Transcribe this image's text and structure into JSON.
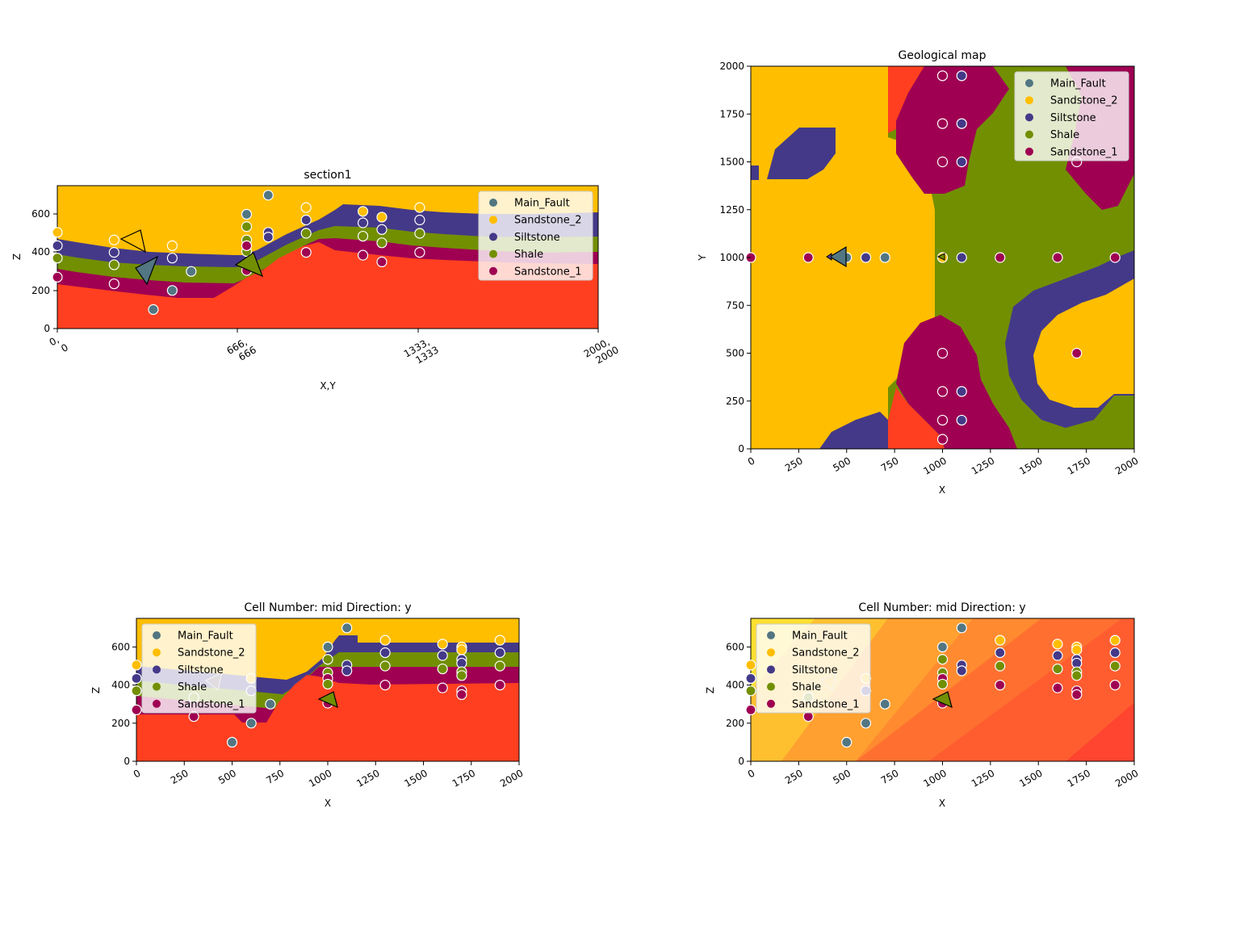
{
  "colors": {
    "Main_Fault": "#527682",
    "Sandstone_2": "#ffbe00",
    "Siltstone": "#443988",
    "Shale": "#728f02",
    "Sandstone_1": "#9f0052",
    "Basement": "#ff3f20"
  },
  "legend": [
    "Main_Fault",
    "Sandstone_2",
    "Siltstone",
    "Shale",
    "Sandstone_1"
  ],
  "chart_data": [
    {
      "id": "section1",
      "type": "scatter",
      "title": "section1",
      "xlabel": "X,Y",
      "ylabel": "Z",
      "xlim": [
        0,
        2000
      ],
      "ylim": [
        0,
        750
      ],
      "legend_position": "top-right",
      "xtick_labels": [
        [
          "0,",
          "0"
        ],
        [
          "666,",
          "666"
        ],
        [
          "1333,",
          "1333"
        ],
        [
          "2000,",
          "2000"
        ]
      ],
      "yticks": [
        0,
        200,
        400,
        600
      ],
      "points": [
        {
          "s": "Sandstone_2",
          "x": 0,
          "z": 505
        },
        {
          "s": "Siltstone",
          "x": 0,
          "z": 435
        },
        {
          "s": "Shale",
          "x": 0,
          "z": 370
        },
        {
          "s": "Sandstone_1",
          "x": 0,
          "z": 270
        },
        {
          "s": "Sandstone_2",
          "x": 210,
          "z": 465
        },
        {
          "s": "Siltstone",
          "x": 210,
          "z": 400
        },
        {
          "s": "Shale",
          "x": 210,
          "z": 335
        },
        {
          "s": "Sandstone_1",
          "x": 210,
          "z": 235
        },
        {
          "s": "Main_Fault",
          "x": 355,
          "z": 100
        },
        {
          "s": "Sandstone_2",
          "x": 425,
          "z": 435
        },
        {
          "s": "Siltstone",
          "x": 425,
          "z": 370
        },
        {
          "s": "Main_Fault",
          "x": 425,
          "z": 200
        },
        {
          "s": "Main_Fault",
          "x": 495,
          "z": 300
        },
        {
          "s": "Main_Fault",
          "x": 700,
          "z": 600
        },
        {
          "s": "Shale",
          "x": 700,
          "z": 535
        },
        {
          "s": "Shale",
          "x": 700,
          "z": 465
        },
        {
          "s": "Shale",
          "x": 700,
          "z": 405
        },
        {
          "s": "Sandstone_1",
          "x": 700,
          "z": 435
        },
        {
          "s": "Sandstone_1",
          "x": 700,
          "z": 305
        },
        {
          "s": "Main_Fault",
          "x": 780,
          "z": 700
        },
        {
          "s": "Siltstone",
          "x": 780,
          "z": 505
        },
        {
          "s": "Siltstone",
          "x": 780,
          "z": 480
        },
        {
          "s": "Sandstone_2",
          "x": 920,
          "z": 635
        },
        {
          "s": "Siltstone",
          "x": 920,
          "z": 570
        },
        {
          "s": "Shale",
          "x": 920,
          "z": 500
        },
        {
          "s": "Sandstone_1",
          "x": 920,
          "z": 400
        },
        {
          "s": "Sandstone_2",
          "x": 1130,
          "z": 615
        },
        {
          "s": "Siltstone",
          "x": 1130,
          "z": 555
        },
        {
          "s": "Shale",
          "x": 1130,
          "z": 485
        },
        {
          "s": "Sandstone_1",
          "x": 1130,
          "z": 385
        },
        {
          "s": "Sandstone_2",
          "x": 1200,
          "z": 585
        },
        {
          "s": "Siltstone",
          "x": 1200,
          "z": 520
        },
        {
          "s": "Shale",
          "x": 1200,
          "z": 450
        },
        {
          "s": "Sandstone_1",
          "x": 1200,
          "z": 350
        },
        {
          "s": "Sandstone_2",
          "x": 1340,
          "z": 635
        },
        {
          "s": "Siltstone",
          "x": 1340,
          "z": 570
        },
        {
          "s": "Shale",
          "x": 1340,
          "z": 500
        },
        {
          "s": "Sandstone_1",
          "x": 1340,
          "z": 400
        }
      ]
    },
    {
      "id": "geomap",
      "type": "scatter",
      "title": "Geological map",
      "xlabel": "X",
      "ylabel": "Y",
      "xlim": [
        0,
        2000
      ],
      "ylim": [
        0,
        2000
      ],
      "legend_position": "top-right",
      "xticks": [
        0,
        250,
        500,
        750,
        1000,
        1250,
        1500,
        1750,
        2000
      ],
      "yticks": [
        0,
        250,
        500,
        750,
        1000,
        1250,
        1500,
        1750,
        2000
      ],
      "points": [
        {
          "s": "Sandstone_1",
          "x": 1000,
          "y": 1950
        },
        {
          "s": "Siltstone",
          "x": 1100,
          "y": 1950
        },
        {
          "s": "Sandstone_1",
          "x": 1000,
          "y": 1700
        },
        {
          "s": "Siltstone",
          "x": 1100,
          "y": 1700
        },
        {
          "s": "Sandstone_1",
          "x": 1000,
          "y": 1500
        },
        {
          "s": "Siltstone",
          "x": 1100,
          "y": 1500
        },
        {
          "s": "Sandstone_1",
          "x": 1700,
          "y": 1500
        },
        {
          "s": "Sandstone_1",
          "x": 0,
          "y": 1000
        },
        {
          "s": "Sandstone_1",
          "x": 300,
          "y": 1000
        },
        {
          "s": "Main_Fault",
          "x": 500,
          "y": 1000
        },
        {
          "s": "Siltstone",
          "x": 600,
          "y": 1000
        },
        {
          "s": "Main_Fault",
          "x": 700,
          "y": 1000
        },
        {
          "s": "Sandstone_2",
          "x": 1000,
          "y": 1000
        },
        {
          "s": "Siltstone",
          "x": 1100,
          "y": 1000
        },
        {
          "s": "Sandstone_1",
          "x": 1300,
          "y": 1000
        },
        {
          "s": "Sandstone_1",
          "x": 1600,
          "y": 1000
        },
        {
          "s": "Sandstone_1",
          "x": 1900,
          "y": 1000
        },
        {
          "s": "Sandstone_1",
          "x": 1000,
          "y": 500
        },
        {
          "s": "Sandstone_1",
          "x": 1700,
          "y": 500
        },
        {
          "s": "Sandstone_1",
          "x": 1000,
          "y": 300
        },
        {
          "s": "Siltstone",
          "x": 1100,
          "y": 300
        },
        {
          "s": "Sandstone_1",
          "x": 1000,
          "y": 150
        },
        {
          "s": "Siltstone",
          "x": 1100,
          "y": 150
        },
        {
          "s": "Sandstone_1",
          "x": 1000,
          "y": 50
        }
      ]
    },
    {
      "id": "cell_lith",
      "type": "scatter",
      "title": "Cell Number: mid Direction: y",
      "xlabel": "X",
      "ylabel": "Z",
      "xlim": [
        0,
        2000
      ],
      "ylim": [
        0,
        750
      ],
      "legend_position": "top-left",
      "xticks": [
        0,
        250,
        500,
        750,
        1000,
        1250,
        1500,
        1750,
        2000
      ],
      "yticks": [
        0,
        200,
        400,
        600
      ],
      "points": [
        {
          "s": "Sandstone_2",
          "x": 0,
          "z": 505
        },
        {
          "s": "Siltstone",
          "x": 0,
          "z": 435
        },
        {
          "s": "Shale",
          "x": 0,
          "z": 370
        },
        {
          "s": "Sandstone_1",
          "x": 0,
          "z": 270
        },
        {
          "s": "Shale",
          "x": 300,
          "z": 335
        },
        {
          "s": "Sandstone_1",
          "x": 300,
          "z": 235
        },
        {
          "s": "Main_Fault",
          "x": 500,
          "z": 100
        },
        {
          "s": "Sandstone_2",
          "x": 600,
          "z": 435
        },
        {
          "s": "Siltstone",
          "x": 600,
          "z": 370
        },
        {
          "s": "Main_Fault",
          "x": 600,
          "z": 200
        },
        {
          "s": "Main_Fault",
          "x": 700,
          "z": 300
        },
        {
          "s": "Main_Fault",
          "x": 1000,
          "z": 600
        },
        {
          "s": "Shale",
          "x": 1000,
          "z": 535
        },
        {
          "s": "Shale",
          "x": 1000,
          "z": 465
        },
        {
          "s": "Sandstone_1",
          "x": 1000,
          "z": 435
        },
        {
          "s": "Shale",
          "x": 1000,
          "z": 405
        },
        {
          "s": "Sandstone_1",
          "x": 1000,
          "z": 305
        },
        {
          "s": "Main_Fault",
          "x": 1100,
          "z": 700
        },
        {
          "s": "Siltstone",
          "x": 1100,
          "z": 505
        },
        {
          "s": "Siltstone",
          "x": 1100,
          "z": 475
        },
        {
          "s": "Sandstone_2",
          "x": 1300,
          "z": 635
        },
        {
          "s": "Siltstone",
          "x": 1300,
          "z": 570
        },
        {
          "s": "Shale",
          "x": 1300,
          "z": 500
        },
        {
          "s": "Sandstone_1",
          "x": 1300,
          "z": 400
        },
        {
          "s": "Sandstone_2",
          "x": 1600,
          "z": 615
        },
        {
          "s": "Siltstone",
          "x": 1600,
          "z": 555
        },
        {
          "s": "Shale",
          "x": 1600,
          "z": 485
        },
        {
          "s": "Sandstone_1",
          "x": 1600,
          "z": 385
        },
        {
          "s": "Sandstone_2",
          "x": 1700,
          "z": 600
        },
        {
          "s": "Sandstone_2",
          "x": 1700,
          "z": 585
        },
        {
          "s": "Siltstone",
          "x": 1700,
          "z": 535
        },
        {
          "s": "Siltstone",
          "x": 1700,
          "z": 515
        },
        {
          "s": "Shale",
          "x": 1700,
          "z": 470
        },
        {
          "s": "Shale",
          "x": 1700,
          "z": 450
        },
        {
          "s": "Sandstone_1",
          "x": 1700,
          "z": 370
        },
        {
          "s": "Sandstone_1",
          "x": 1700,
          "z": 350
        },
        {
          "s": "Sandstone_2",
          "x": 1900,
          "z": 635
        },
        {
          "s": "Siltstone",
          "x": 1900,
          "z": 570
        },
        {
          "s": "Shale",
          "x": 1900,
          "z": 500
        },
        {
          "s": "Sandstone_1",
          "x": 1900,
          "z": 400
        }
      ]
    },
    {
      "id": "cell_scalar",
      "type": "scatter",
      "title": "Cell Number: mid Direction: y",
      "xlabel": "X",
      "ylabel": "Z",
      "xlim": [
        0,
        2000
      ],
      "ylim": [
        0,
        750
      ],
      "legend_position": "top-left",
      "xticks": [
        0,
        250,
        500,
        750,
        1000,
        1250,
        1500,
        1750,
        2000
      ],
      "yticks": [
        0,
        200,
        400,
        600
      ],
      "points": "same as cell_lith"
    }
  ]
}
